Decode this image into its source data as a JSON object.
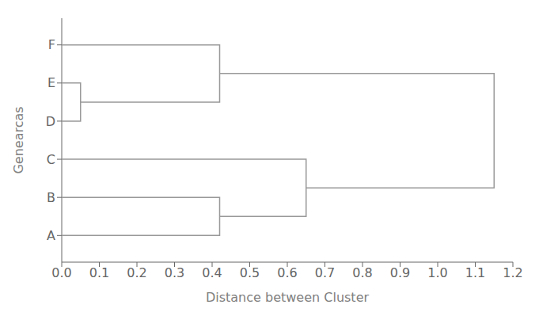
{
  "chart_data": {
    "type": "dendrogram",
    "xlabel": "Distance between Cluster",
    "ylabel": "Genearcas",
    "color": "#999999",
    "xlim": [
      0.0,
      1.2
    ],
    "xticks": [
      {
        "value": 0.0,
        "label": "0.0"
      },
      0.1,
      0.2,
      0.3,
      0.4,
      0.5,
      0.6,
      0.7,
      0.8,
      0.9,
      {
        "value": 1.0,
        "label": "1.0"
      },
      1.1,
      1.2
    ],
    "ylim": [
      6.7,
      0.3
    ],
    "yticks": [
      {
        "value": 6,
        "label": "A"
      },
      {
        "value": 5,
        "label": "B"
      },
      {
        "value": 4,
        "label": "C"
      },
      {
        "value": 3,
        "label": "D"
      },
      {
        "value": 2,
        "label": "E"
      },
      {
        "value": 1,
        "label": "F"
      }
    ],
    "tree": {
      "distance": 1.15,
      "children": [
        {
          "distance": 0.65,
          "children": [
            {
              "distance": 0.42,
              "children": [
                "A",
                "B"
              ]
            },
            "C"
          ]
        },
        {
          "distance": 0.42,
          "children": [
            {
              "distance": 0.05,
              "children": [
                "D",
                "E"
              ]
            },
            "F"
          ]
        }
      ]
    }
  }
}
